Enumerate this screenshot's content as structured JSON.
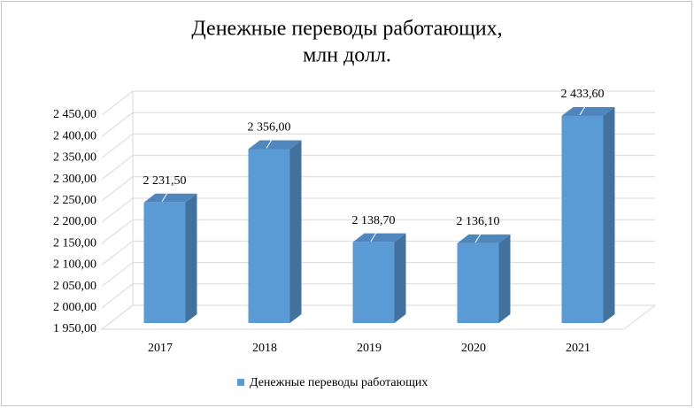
{
  "chart_data": {
    "type": "bar3d",
    "title": [
      "Денежные переводы работающих,",
      "млн долл."
    ],
    "categories": [
      "2017",
      "2018",
      "2019",
      "2020",
      "2021"
    ],
    "series": [
      {
        "name": "Денежные переводы работающих",
        "color": "#5b9bd5",
        "values": [
          2231.5,
          2356.0,
          2138.7,
          2136.1,
          2433.6
        ],
        "value_labels": [
          "2 231,50",
          "2 356,00",
          "2 138,70",
          "2 136,10",
          "2 433,60"
        ]
      }
    ],
    "ylim": [
      1950,
      2450
    ],
    "yticks": [
      {
        "value": 1950,
        "label": "1 950,00"
      },
      {
        "value": 2000,
        "label": "2 000,00"
      },
      {
        "value": 2050,
        "label": "2 050,00"
      },
      {
        "value": 2100,
        "label": "2 100,00"
      },
      {
        "value": 2150,
        "label": "2 150,00"
      },
      {
        "value": 2200,
        "label": "2 200,00"
      },
      {
        "value": 2250,
        "label": "2 250,00"
      },
      {
        "value": 2300,
        "label": "2 300,00"
      },
      {
        "value": 2350,
        "label": "2 350,00"
      },
      {
        "value": 2400,
        "label": "2 400,00"
      },
      {
        "value": 2450,
        "label": "2 450,00"
      }
    ],
    "grid": true,
    "legend": "bottom"
  }
}
